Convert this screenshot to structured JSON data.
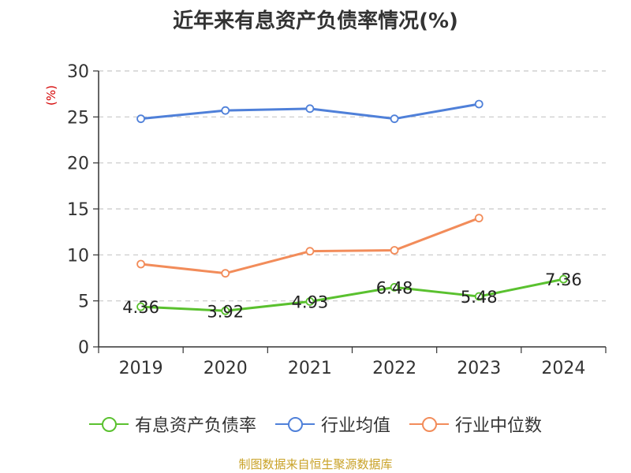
{
  "chart_data": {
    "type": "line",
    "title": "近年来有息资产负债率情况(%)",
    "unit_label": "(%)",
    "categories": [
      "2019",
      "2020",
      "2021",
      "2022",
      "2023",
      "2024"
    ],
    "ylim": [
      0,
      30
    ],
    "yticks": [
      "0",
      "5",
      "10",
      "15",
      "20",
      "25",
      "30"
    ],
    "grid": true,
    "legend_position": "bottom",
    "series": [
      {
        "name": "有息资产负债率",
        "color": "#5ac12f",
        "values": [
          4.36,
          3.92,
          4.93,
          6.48,
          5.48,
          7.36
        ],
        "labels": [
          "4.36",
          "3.92",
          "4.93",
          "6.48",
          "5.48",
          "7.36"
        ]
      },
      {
        "name": "行业均值",
        "color": "#4f80d9",
        "values": [
          24.8,
          25.7,
          25.9,
          24.8,
          26.4,
          null
        ]
      },
      {
        "name": "行业中位数",
        "color": "#f28c5a",
        "values": [
          9.0,
          8.0,
          10.4,
          10.5,
          14.0,
          null
        ]
      }
    ]
  },
  "source": "制图数据来自恒生聚源数据库"
}
